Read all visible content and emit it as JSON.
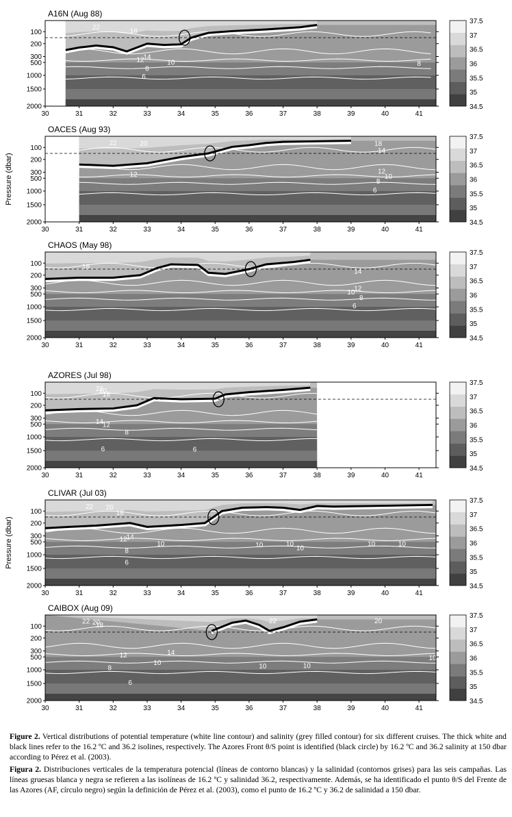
{
  "chart_data": [
    {
      "type": "heatmap",
      "title": "A16N (Aug 88)",
      "x_range": [
        30,
        41.5
      ],
      "data_x_range": [
        30.6,
        41.5
      ],
      "y_ticks": [
        "100",
        "200",
        "300",
        "500",
        "1000",
        "1500",
        "2000"
      ],
      "x_ticks": [
        "30",
        "31",
        "32",
        "33",
        "34",
        "35",
        "36",
        "37",
        "38",
        "39",
        "40",
        "41"
      ],
      "salinity_front_36_2": [
        [
          30.6,
          250
        ],
        [
          31,
          230
        ],
        [
          31.5,
          215
        ],
        [
          32,
          228
        ],
        [
          32.4,
          260
        ],
        [
          32.8,
          220
        ],
        [
          33,
          200
        ],
        [
          33.5,
          210
        ],
        [
          34,
          205
        ],
        [
          34.3,
          150
        ],
        [
          34.8,
          110
        ],
        [
          35.5,
          95
        ],
        [
          36.5,
          80
        ],
        [
          37.5,
          60
        ],
        [
          38,
          40
        ]
      ],
      "af_point": {
        "lon": 34.1,
        "pressure": 150
      },
      "isotherm_labels": [
        {
          "text": "22",
          "x": 31.5,
          "y": 55
        },
        {
          "text": "18",
          "x": 32.6,
          "y": 90
        },
        {
          "text": "14",
          "x": 33,
          "y": 300
        },
        {
          "text": "12",
          "x": 32.8,
          "y": 390
        },
        {
          "text": "10",
          "x": 33.7,
          "y": 480
        },
        {
          "text": "8",
          "x": 33,
          "y": 720
        },
        {
          "text": "6",
          "x": 32.9,
          "y": 1020
        },
        {
          "text": "8",
          "x": 41,
          "y": 520
        }
      ],
      "dashed_line_pressure": 150
    },
    {
      "type": "heatmap",
      "title": "OACES (Aug 93)",
      "x_range": [
        30,
        41.5
      ],
      "data_x_range": [
        31,
        41.5
      ],
      "y_ticks": [
        "100",
        "200",
        "300",
        "500",
        "1000",
        "1500",
        "2000"
      ],
      "x_ticks": [
        "30",
        "31",
        "32",
        "33",
        "34",
        "35",
        "36",
        "37",
        "38",
        "39",
        "40",
        "41"
      ],
      "salinity_front_36_2": [
        [
          31,
          240
        ],
        [
          32,
          250
        ],
        [
          33,
          230
        ],
        [
          34,
          180
        ],
        [
          34.8,
          150
        ],
        [
          35.5,
          95
        ],
        [
          36,
          80
        ],
        [
          36.5,
          60
        ],
        [
          37,
          50
        ],
        [
          38,
          45
        ],
        [
          39,
          40
        ]
      ],
      "af_point": {
        "lon": 34.85,
        "pressure": 150
      },
      "isotherm_labels": [
        {
          "text": "22",
          "x": 32,
          "y": 55
        },
        {
          "text": "20",
          "x": 32.9,
          "y": 60
        },
        {
          "text": "14",
          "x": 39.9,
          "y": 120
        },
        {
          "text": "12",
          "x": 32.6,
          "y": 360
        },
        {
          "text": "12",
          "x": 39.9,
          "y": 290
        },
        {
          "text": "10",
          "x": 40.1,
          "y": 420
        },
        {
          "text": "8",
          "x": 39.8,
          "y": 600
        },
        {
          "text": "6",
          "x": 39.7,
          "y": 950
        },
        {
          "text": "18",
          "x": 39.8,
          "y": 60
        }
      ],
      "dashed_line_pressure": 150
    },
    {
      "type": "heatmap",
      "title": "CHAOS (May 98)",
      "x_range": [
        30,
        41.5
      ],
      "data_x_range": [
        30,
        41.5
      ],
      "y_ticks": [
        "100",
        "200",
        "300",
        "500",
        "1000",
        "1500",
        "2000"
      ],
      "x_ticks": [
        "30",
        "31",
        "32",
        "33",
        "34",
        "35",
        "36",
        "37",
        "38",
        "39",
        "40",
        "41"
      ],
      "salinity_front_36_2": [
        [
          30,
          230
        ],
        [
          31,
          220
        ],
        [
          32,
          220
        ],
        [
          32.8,
          200
        ],
        [
          33.3,
          140
        ],
        [
          33.7,
          110
        ],
        [
          34.5,
          115
        ],
        [
          34.8,
          180
        ],
        [
          35.3,
          190
        ],
        [
          36,
          150
        ],
        [
          36.5,
          110
        ],
        [
          37.3,
          90
        ],
        [
          37.8,
          70
        ]
      ],
      "af_point": {
        "lon": 36.05,
        "pressure": 150
      },
      "isotherm_labels": [
        {
          "text": "18",
          "x": 31.2,
          "y": 125
        },
        {
          "text": "14",
          "x": 39.2,
          "y": 165
        },
        {
          "text": "12",
          "x": 39.2,
          "y": 300
        },
        {
          "text": "10",
          "x": 39,
          "y": 420
        },
        {
          "text": "8",
          "x": 39.3,
          "y": 620
        },
        {
          "text": "6",
          "x": 39.1,
          "y": 950
        }
      ],
      "dashed_line_pressure": 150
    },
    {
      "type": "heatmap",
      "title": "AZORES (Jul 98)",
      "x_range": [
        30,
        41.5
      ],
      "data_x_range": [
        30,
        38
      ],
      "y_ticks": [
        "100",
        "200",
        "300",
        "500",
        "1000",
        "1500",
        "2000"
      ],
      "x_ticks": [
        "30",
        "31",
        "32",
        "33",
        "34",
        "35",
        "36",
        "37",
        "38",
        "39",
        "40",
        "41"
      ],
      "salinity_front_36_2": [
        [
          30,
          240
        ],
        [
          31,
          230
        ],
        [
          32,
          225
        ],
        [
          32.7,
          200
        ],
        [
          33.2,
          140
        ],
        [
          34,
          150
        ],
        [
          35,
          145
        ],
        [
          35.3,
          110
        ],
        [
          36,
          90
        ],
        [
          37,
          70
        ],
        [
          37.8,
          50
        ]
      ],
      "af_point": {
        "lon": 35.1,
        "pressure": 150
      },
      "isotherm_labels": [
        {
          "text": "22",
          "x": 31.6,
          "y": 55
        },
        {
          "text": "20",
          "x": 31.7,
          "y": 75
        },
        {
          "text": "18",
          "x": 31.8,
          "y": 105
        },
        {
          "text": "14",
          "x": 31.6,
          "y": 400
        },
        {
          "text": "12",
          "x": 31.8,
          "y": 500
        },
        {
          "text": "8",
          "x": 32.4,
          "y": 800
        },
        {
          "text": "6",
          "x": 31.7,
          "y": 1420
        },
        {
          "text": "6",
          "x": 34.4,
          "y": 1440
        }
      ],
      "dashed_line_pressure": 150
    },
    {
      "type": "heatmap",
      "title": "CLIVAR (Jul 03)",
      "x_range": [
        30,
        41.5
      ],
      "data_x_range": [
        30,
        41.5
      ],
      "y_ticks": [
        "100",
        "200",
        "300",
        "500",
        "1000",
        "1500",
        "2000"
      ],
      "x_ticks": [
        "30",
        "31",
        "32",
        "33",
        "34",
        "35",
        "36",
        "37",
        "38",
        "39",
        "40",
        "41"
      ],
      "salinity_front_36_2": [
        [
          30,
          240
        ],
        [
          30.7,
          230
        ],
        [
          31.5,
          220
        ],
        [
          32.5,
          200
        ],
        [
          33,
          230
        ],
        [
          34,
          215
        ],
        [
          34.7,
          200
        ],
        [
          35.2,
          100
        ],
        [
          35.8,
          70
        ],
        [
          36.5,
          65
        ],
        [
          37,
          70
        ],
        [
          37.5,
          90
        ],
        [
          38,
          55
        ],
        [
          38.5,
          60
        ],
        [
          39.5,
          55
        ],
        [
          41.4,
          45
        ]
      ],
      "af_point": {
        "lon": 34.95,
        "pressure": 150
      },
      "isotherm_labels": [
        {
          "text": "22",
          "x": 31.3,
          "y": 55
        },
        {
          "text": "20",
          "x": 31.9,
          "y": 60
        },
        {
          "text": "18",
          "x": 32.2,
          "y": 110
        },
        {
          "text": "14",
          "x": 32.5,
          "y": 320
        },
        {
          "text": "12",
          "x": 32.3,
          "y": 390
        },
        {
          "text": "10",
          "x": 33.4,
          "y": 560
        },
        {
          "text": "10",
          "x": 36.3,
          "y": 600
        },
        {
          "text": "10",
          "x": 37.2,
          "y": 560
        },
        {
          "text": "10",
          "x": 37.5,
          "y": 720
        },
        {
          "text": "10",
          "x": 39.6,
          "y": 560
        },
        {
          "text": "10",
          "x": 40.5,
          "y": 560
        },
        {
          "text": "8",
          "x": 32.4,
          "y": 820
        },
        {
          "text": "6",
          "x": 32.4,
          "y": 1260
        }
      ],
      "dashed_line_pressure": 150
    },
    {
      "type": "heatmap",
      "title": "CAIBOX (Aug 09)",
      "x_range": [
        30,
        41.5
      ],
      "data_x_range": [
        30,
        41.5
      ],
      "y_ticks": [
        "100",
        "200",
        "300",
        "500",
        "1000",
        "1500",
        "2000"
      ],
      "x_ticks": [
        "30",
        "31",
        "32",
        "33",
        "34",
        "35",
        "36",
        "37",
        "38",
        "39",
        "40",
        "41"
      ],
      "salinity_front_36_2": [
        [
          34.9,
          140
        ],
        [
          35.5,
          70
        ],
        [
          35.9,
          50
        ],
        [
          36.3,
          90
        ],
        [
          36.6,
          140
        ],
        [
          37,
          110
        ],
        [
          37.5,
          60
        ],
        [
          38,
          40
        ]
      ],
      "af_point": {
        "lon": 34.9,
        "pressure": 150
      },
      "isotherm_labels": [
        {
          "text": "22",
          "x": 31.2,
          "y": 52
        },
        {
          "text": "20",
          "x": 31.5,
          "y": 60
        },
        {
          "text": "18",
          "x": 31.6,
          "y": 85
        },
        {
          "text": "12",
          "x": 32.3,
          "y": 430
        },
        {
          "text": "14",
          "x": 33.7,
          "y": 330
        },
        {
          "text": "10",
          "x": 33.3,
          "y": 700
        },
        {
          "text": "8",
          "x": 31.9,
          "y": 900
        },
        {
          "text": "6",
          "x": 32.5,
          "y": 1450
        },
        {
          "text": "10",
          "x": 36.4,
          "y": 840
        },
        {
          "text": "10",
          "x": 37.7,
          "y": 820
        },
        {
          "text": "22",
          "x": 36.7,
          "y": 50
        },
        {
          "text": "20",
          "x": 39.8,
          "y": 50
        },
        {
          "text": "10",
          "x": 41.4,
          "y": 520
        }
      ],
      "dashed_line_pressure": 150
    }
  ],
  "colorbar": {
    "ticks": [
      "37.5",
      "37",
      "36.5",
      "36",
      "35.5",
      "35",
      "34.5"
    ],
    "colors": [
      "#f2f2f2",
      "#d9d9d9",
      "#bdbdbd",
      "#9b9b9b",
      "#7b7b7b",
      "#5d5d5d",
      "#404040"
    ]
  },
  "y_axis_label": "Pressure (dbar)",
  "caption_en": {
    "label": "Figure 2.",
    "text": "Vertical distributions of potential temperature (white line contour) and salinity (grey filled contour) for six different cruises. The thick white and black lines refer to the 16.2 ºC and 36.2 isolines, respectively. The Azores Front θ/S point is identified (black circle) by 16.2 ºC and 36.2 salinity at 150 dbar according to Pérez et al. (2003)."
  },
  "caption_es": {
    "label": "Figura 2.",
    "text": "Distribuciones verticales de la temperatura potencial (líneas de contorno blancas) y la salinidad (contornos grises) para las seis campañas. Las líneas gruesas blanca y negra se refieren a las isolíneas de 16.2 ºC y salinidad 36.2, respectivamente. Además, se ha identificado el punto θ/S del Frente de las Azores (AF, círculo negro) según la definición de Pérez et al. (2003), como el punto de 16.2 ºC y 36.2 de salinidad a 150 dbar."
  }
}
